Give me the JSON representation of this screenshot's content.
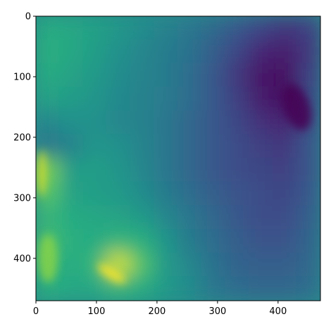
{
  "chart_data": {
    "type": "heatmap",
    "title": "",
    "xlabel": "",
    "ylabel": "",
    "colormap": "viridis",
    "image_size": [
      470,
      470
    ],
    "xlim": [
      0,
      470
    ],
    "ylim": [
      470,
      0
    ],
    "y_axis_inverted": true,
    "grid": false,
    "legend": "none",
    "x_ticks": [
      {
        "value": 0,
        "label": "0"
      },
      {
        "value": 100,
        "label": "100"
      },
      {
        "value": 200,
        "label": "200"
      },
      {
        "value": 300,
        "label": "300"
      },
      {
        "value": 400,
        "label": "400"
      }
    ],
    "y_ticks": [
      {
        "value": 0,
        "label": "0"
      },
      {
        "value": 100,
        "label": "100"
      },
      {
        "value": 200,
        "label": "200"
      },
      {
        "value": 300,
        "label": "300"
      },
      {
        "value": 400,
        "label": "400"
      }
    ],
    "grid_resolution": 12,
    "intensity_grid": [
      [
        0.62,
        0.6,
        0.57,
        0.53,
        0.48,
        0.44,
        0.4,
        0.35,
        0.28,
        0.22,
        0.18,
        0.2
      ],
      [
        0.64,
        0.6,
        0.56,
        0.5,
        0.46,
        0.42,
        0.38,
        0.3,
        0.22,
        0.14,
        0.1,
        0.18
      ],
      [
        0.62,
        0.58,
        0.54,
        0.48,
        0.45,
        0.42,
        0.36,
        0.28,
        0.18,
        0.08,
        0.05,
        0.2
      ],
      [
        0.58,
        0.55,
        0.52,
        0.47,
        0.44,
        0.41,
        0.36,
        0.28,
        0.2,
        0.1,
        0.06,
        0.22
      ],
      [
        0.46,
        0.5,
        0.5,
        0.46,
        0.44,
        0.4,
        0.34,
        0.28,
        0.22,
        0.16,
        0.12,
        0.24
      ],
      [
        0.4,
        0.44,
        0.52,
        0.5,
        0.45,
        0.4,
        0.34,
        0.28,
        0.24,
        0.2,
        0.18,
        0.26
      ],
      [
        0.8,
        0.55,
        0.56,
        0.52,
        0.46,
        0.4,
        0.34,
        0.28,
        0.24,
        0.22,
        0.2,
        0.26
      ],
      [
        0.74,
        0.58,
        0.56,
        0.54,
        0.48,
        0.42,
        0.36,
        0.3,
        0.26,
        0.24,
        0.22,
        0.28
      ],
      [
        0.66,
        0.62,
        0.6,
        0.58,
        0.54,
        0.46,
        0.4,
        0.34,
        0.28,
        0.24,
        0.24,
        0.3
      ],
      [
        0.7,
        0.64,
        0.62,
        0.66,
        0.64,
        0.52,
        0.42,
        0.36,
        0.3,
        0.26,
        0.26,
        0.32
      ],
      [
        0.66,
        0.62,
        0.66,
        0.94,
        0.72,
        0.54,
        0.46,
        0.38,
        0.32,
        0.3,
        0.3,
        0.34
      ],
      [
        0.64,
        0.6,
        0.6,
        0.66,
        0.62,
        0.54,
        0.48,
        0.4,
        0.36,
        0.34,
        0.34,
        0.36
      ]
    ],
    "highlights": [
      {
        "cx": 125,
        "cy": 425,
        "rx": 26,
        "ry": 8,
        "angle": 32,
        "intensity": 1.0
      },
      {
        "cx": 10,
        "cy": 260,
        "rx": 7,
        "ry": 38,
        "angle": 0,
        "intensity": 0.95
      },
      {
        "cx": 430,
        "cy": 150,
        "rx": 22,
        "ry": 40,
        "angle": -20,
        "intensity": 0.0
      },
      {
        "cx": 20,
        "cy": 400,
        "rx": 16,
        "ry": 40,
        "angle": 0,
        "intensity": 0.82
      }
    ]
  }
}
